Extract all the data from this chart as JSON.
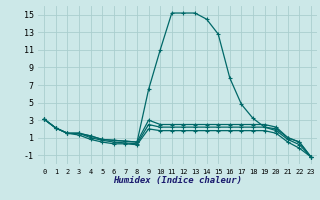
{
  "xlabel": "Humidex (Indice chaleur)",
  "background_color": "#cce8e8",
  "grid_color": "#aacece",
  "line_color": "#006868",
  "xlim": [
    -0.5,
    23.5
  ],
  "ylim": [
    -2,
    16
  ],
  "xticks": [
    0,
    1,
    2,
    3,
    4,
    5,
    6,
    7,
    8,
    9,
    10,
    11,
    12,
    13,
    14,
    15,
    16,
    17,
    18,
    19,
    20,
    21,
    22,
    23
  ],
  "yticks": [
    -1,
    1,
    3,
    5,
    7,
    9,
    11,
    13,
    15
  ],
  "series": [
    {
      "x": [
        0,
        1,
        2,
        3,
        4,
        5,
        6,
        7,
        8,
        9,
        10,
        11,
        12,
        13,
        14,
        15,
        16,
        17,
        18,
        19,
        20,
        21,
        22,
        23
      ],
      "y": [
        3.1,
        2.1,
        1.5,
        1.5,
        1.2,
        0.8,
        0.7,
        0.6,
        0.5,
        6.5,
        11.0,
        15.2,
        15.2,
        15.2,
        14.5,
        12.8,
        7.8,
        4.8,
        3.2,
        2.2,
        2.0,
        1.0,
        0.5,
        -1.2
      ]
    },
    {
      "x": [
        0,
        1,
        2,
        3,
        4,
        5,
        6,
        7,
        8,
        9,
        10,
        11,
        12,
        13,
        14,
        15,
        16,
        17,
        18,
        19,
        20,
        21,
        22,
        23
      ],
      "y": [
        3.1,
        2.1,
        1.5,
        1.5,
        1.2,
        0.8,
        0.7,
        0.6,
        0.5,
        3.0,
        2.5,
        2.5,
        2.5,
        2.5,
        2.5,
        2.5,
        2.5,
        2.5,
        2.5,
        2.5,
        2.2,
        1.0,
        0.5,
        -1.2
      ]
    },
    {
      "x": [
        0,
        1,
        2,
        3,
        4,
        5,
        6,
        7,
        8,
        9,
        10,
        11,
        12,
        13,
        14,
        15,
        16,
        17,
        18,
        19,
        20,
        21,
        22,
        23
      ],
      "y": [
        3.1,
        2.1,
        1.5,
        1.5,
        1.0,
        0.7,
        0.5,
        0.4,
        0.3,
        2.5,
        2.2,
        2.2,
        2.2,
        2.2,
        2.2,
        2.2,
        2.2,
        2.2,
        2.2,
        2.2,
        1.8,
        0.8,
        0.2,
        -1.2
      ]
    },
    {
      "x": [
        0,
        1,
        2,
        3,
        4,
        5,
        6,
        7,
        8,
        9,
        10,
        11,
        12,
        13,
        14,
        15,
        16,
        17,
        18,
        19,
        20,
        21,
        22,
        23
      ],
      "y": [
        3.1,
        2.1,
        1.5,
        1.3,
        0.8,
        0.5,
        0.3,
        0.3,
        0.2,
        2.0,
        1.8,
        1.8,
        1.8,
        1.8,
        1.8,
        1.8,
        1.8,
        1.8,
        1.8,
        1.8,
        1.5,
        0.5,
        -0.2,
        -1.2
      ]
    }
  ]
}
